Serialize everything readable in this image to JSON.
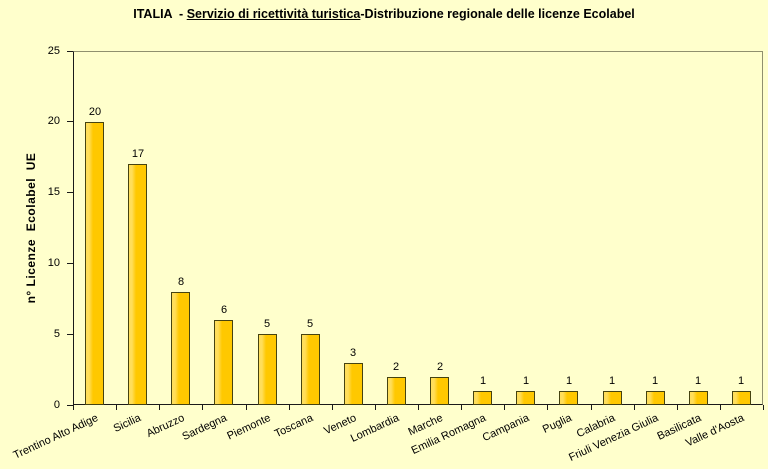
{
  "chart_data": {
    "type": "bar",
    "title": {
      "prefix": "ITALIA  - ",
      "underlined": "Servizio di ricettività turistica",
      "suffix": "-Distribuzione regionale delle licenze Ecolabel"
    },
    "ylabel": "n° Licenze  Ecolabel  UE",
    "xlabel": "",
    "categories": [
      "Trentino Alto Adige",
      "Sicilia",
      "Abruzzo",
      "Sardegna",
      "Piemonte",
      "Toscana",
      "Veneto",
      "Lombardia",
      "Marche",
      "Emilia Romagna",
      "Campania",
      "Puglia",
      "Calabria",
      "Friuli Venezia Giulia",
      "Basilicata",
      "Valle d'Aosta"
    ],
    "values": [
      20,
      17,
      8,
      6,
      5,
      5,
      3,
      2,
      2,
      1,
      1,
      1,
      1,
      1,
      1,
      1
    ],
    "ylim": [
      0,
      25
    ],
    "yticks": [
      0,
      5,
      10,
      15,
      20,
      25
    ],
    "grid": false,
    "legend": false,
    "bar_value_labels_shown": true,
    "colors": {
      "background": "#FFFFCC",
      "bar_fill": "#FFC800",
      "bar_highlight": "#FFDE5A",
      "bar_border": "#454310",
      "axis": "#1A1A1A",
      "plot_border": "#90906E",
      "text": "#000000"
    }
  }
}
